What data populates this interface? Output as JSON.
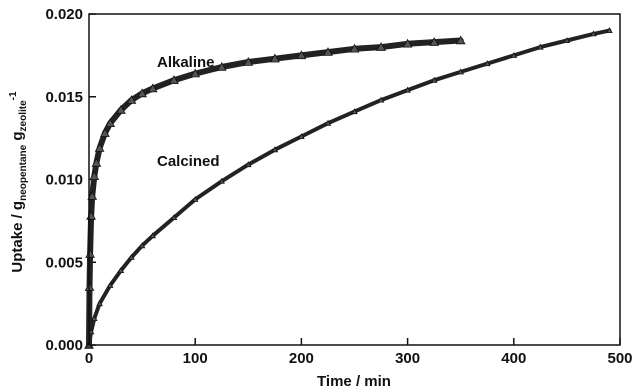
{
  "chart_data": {
    "type": "scatter",
    "title": "",
    "xlabel": "Time / min",
    "ylabel_parts": {
      "prefix": "Uptake / g",
      "sub1": "neopentane",
      "mid": " g",
      "sub2": "zeolite",
      "sup": "-1"
    },
    "xlim": [
      0,
      500
    ],
    "ylim": [
      0,
      0.02
    ],
    "xticks": [
      "0",
      "100",
      "200",
      "300",
      "400",
      "500"
    ],
    "yticks": [
      "0.000",
      "0.005",
      "0.010",
      "0.015",
      "0.020"
    ],
    "grid": false,
    "legend": "none",
    "series": [
      {
        "name": "Alkaline",
        "color": "#222222",
        "x": [
          0,
          0.5,
          1,
          2,
          3,
          5,
          7,
          10,
          15,
          20,
          30,
          40,
          50,
          60,
          80,
          100,
          125,
          150,
          175,
          200,
          225,
          250,
          275,
          300,
          325,
          350
        ],
        "y": [
          0.0,
          0.0035,
          0.0055,
          0.0078,
          0.009,
          0.0102,
          0.011,
          0.0119,
          0.0128,
          0.0134,
          0.0142,
          0.0148,
          0.0152,
          0.0155,
          0.016,
          0.0164,
          0.0168,
          0.0171,
          0.0173,
          0.0175,
          0.0177,
          0.0179,
          0.018,
          0.0182,
          0.0183,
          0.0184
        ]
      },
      {
        "name": "Calcined",
        "color": "#222222",
        "x": [
          0,
          2,
          5,
          10,
          20,
          30,
          40,
          50,
          60,
          80,
          100,
          125,
          150,
          175,
          200,
          225,
          250,
          275,
          300,
          325,
          350,
          375,
          400,
          425,
          450,
          475,
          490
        ],
        "y": [
          0.0,
          0.0008,
          0.0016,
          0.0025,
          0.0036,
          0.0045,
          0.0053,
          0.006,
          0.0066,
          0.0077,
          0.0088,
          0.0099,
          0.0109,
          0.0118,
          0.0126,
          0.0134,
          0.0141,
          0.0148,
          0.0154,
          0.016,
          0.0165,
          0.017,
          0.0175,
          0.018,
          0.0184,
          0.0188,
          0.019
        ]
      }
    ],
    "annotations": [
      {
        "text": "Alkaline",
        "x": 95,
        "y": 0.0173
      },
      {
        "text": "Calcined",
        "x": 95,
        "y": 0.0109
      }
    ]
  }
}
